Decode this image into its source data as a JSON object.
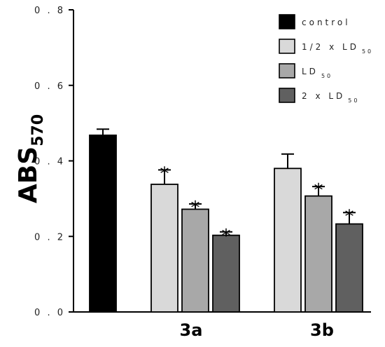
{
  "chart_data": {
    "type": "bar",
    "ylabel": "ABS",
    "ylabel_subscript": "570",
    "ylim": [
      0,
      0.8
    ],
    "yticks": [
      "0 . 0",
      "0 . 2",
      "0 . 4",
      "0 . 6",
      "0 . 8"
    ],
    "yticks_values": [
      0,
      0.2,
      0.4,
      0.6,
      0.8
    ],
    "grid": false,
    "legend_position": "top-right",
    "categories": [
      "",
      "3a",
      "3b"
    ],
    "series": [
      {
        "name": "control",
        "name_sub": "",
        "color": "#000000",
        "values": [
          0.468,
          null,
          null
        ],
        "errors": [
          0.016,
          null,
          null
        ],
        "significant": [
          false,
          false,
          false
        ]
      },
      {
        "name": "1/2 x LD",
        "name_sub": "50",
        "color": "#d9d9d9",
        "values": [
          null,
          0.338,
          0.38
        ],
        "errors": [
          null,
          0.038,
          0.038
        ],
        "significant": [
          false,
          true,
          false
        ]
      },
      {
        "name": "LD",
        "name_sub": "50",
        "color": "#a8a8a8",
        "values": [
          null,
          0.272,
          0.307
        ],
        "errors": [
          null,
          0.014,
          0.025
        ],
        "significant": [
          false,
          true,
          true
        ]
      },
      {
        "name": "2 x LD",
        "name_sub": "50",
        "color": "#606060",
        "values": [
          null,
          0.203,
          0.233
        ],
        "errors": [
          null,
          0.009,
          0.03
        ],
        "significant": [
          false,
          true,
          true
        ]
      }
    ],
    "significance_marker": "*"
  }
}
